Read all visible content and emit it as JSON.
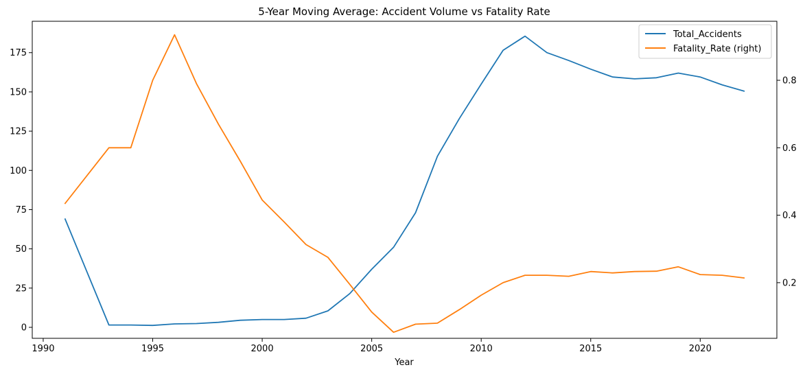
{
  "chart_data": {
    "type": "line",
    "title": "5-Year Moving Average: Accident Volume vs Fatality Rate",
    "xlabel": "Year",
    "ylabel": "",
    "y2label": "",
    "xlim": [
      1989.5,
      2023.5
    ],
    "ylim": [
      -7,
      195
    ],
    "y2lim": [
      0.035,
      0.975
    ],
    "x_ticks": [
      1990,
      1995,
      2000,
      2005,
      2010,
      2015,
      2020
    ],
    "y_ticks": [
      0,
      25,
      50,
      75,
      100,
      125,
      150,
      175
    ],
    "y2_ticks": [
      0.2,
      0.4,
      0.6,
      0.8
    ],
    "legend_position": "top-right",
    "grid": false,
    "x": [
      1991,
      1993,
      1994,
      1995,
      1996,
      1997,
      1998,
      1999,
      2000,
      2001,
      2002,
      2003,
      2004,
      2005,
      2006,
      2007,
      2008,
      2009,
      2010,
      2011,
      2012,
      2013,
      2014,
      2015,
      2016,
      2017,
      2018,
      2019,
      2020,
      2021,
      2022
    ],
    "series": [
      {
        "name": "Total_Accidents",
        "axis": "left",
        "color": "#1f77b4",
        "values": [
          69,
          1.5,
          1.5,
          1.2,
          2.2,
          2.4,
          3.2,
          4.5,
          5.0,
          5.0,
          5.8,
          10.5,
          21.5,
          37.0,
          51.0,
          73.0,
          109.0,
          133.0,
          155.0,
          176.5,
          185.5,
          175.0,
          170.0,
          164.5,
          159.5,
          158.3,
          159.0,
          162.0,
          159.5,
          154.5,
          150.5
        ]
      },
      {
        "name": "Fatality_Rate (right)",
        "axis": "right",
        "color": "#ff7f0e",
        "values": [
          0.435,
          0.6,
          0.6,
          0.8,
          0.935,
          0.79,
          0.67,
          0.56,
          0.445,
          0.38,
          0.313,
          0.275,
          0.195,
          0.113,
          0.053,
          0.077,
          0.08,
          0.12,
          0.163,
          0.2,
          0.222,
          0.222,
          0.219,
          0.233,
          0.229,
          0.233,
          0.234,
          0.247,
          0.224,
          0.222,
          0.214
        ]
      }
    ]
  }
}
